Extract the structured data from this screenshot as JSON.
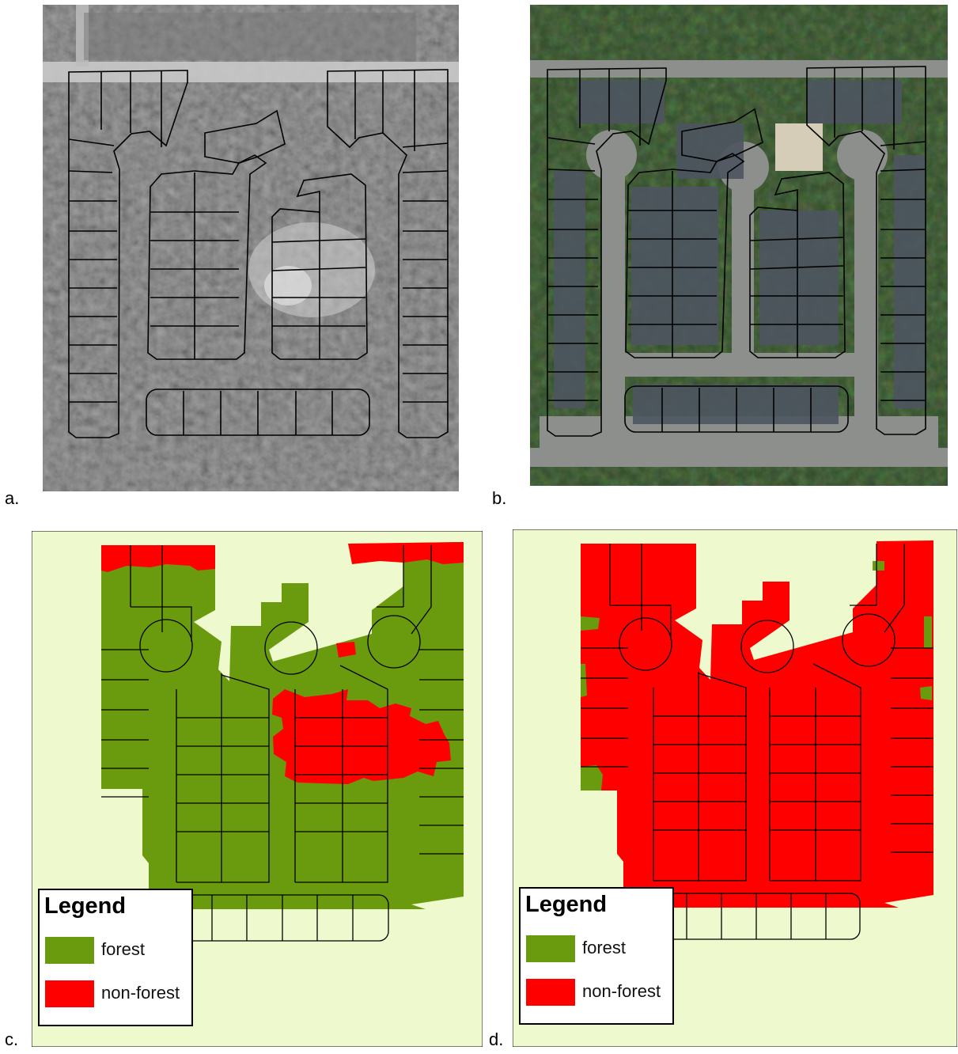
{
  "panels": [
    {
      "id": "a",
      "label": "a.",
      "kind": "aerial-grayscale"
    },
    {
      "id": "b",
      "label": "b.",
      "kind": "aerial-color"
    },
    {
      "id": "c",
      "label": "c.",
      "kind": "classification",
      "non_forest_share": 0.2
    },
    {
      "id": "d",
      "label": "d.",
      "kind": "classification",
      "non_forest_share": 0.97
    }
  ],
  "legend": {
    "title": "Legend",
    "items": [
      {
        "label": "forest",
        "color": "#6a9a0e"
      },
      {
        "label": "non-forest",
        "color": "#ff0000"
      }
    ]
  },
  "colors": {
    "background": "#eefacd",
    "forest": "#6a9a0e",
    "non_forest": "#ff0000",
    "parcel_line": "#000000",
    "road_color_photo": "#8c8f8c",
    "gray_photo_base": "#4a4a4a"
  }
}
